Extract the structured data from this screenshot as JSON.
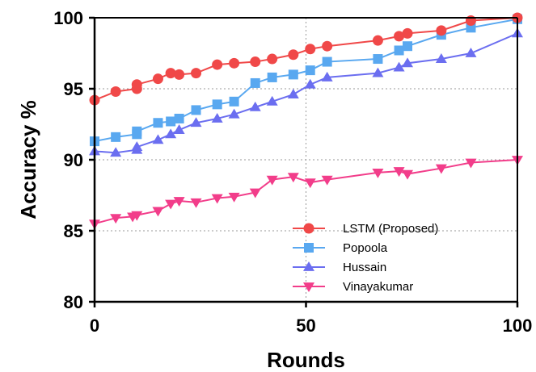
{
  "chart_data": {
    "type": "line",
    "xlabel": "Rounds",
    "ylabel": "Accuracy %",
    "xlim": [
      0,
      100
    ],
    "ylim": [
      80,
      100
    ],
    "xticks": [
      0,
      50,
      100
    ],
    "yticks": [
      80,
      85,
      90,
      95,
      100
    ],
    "grid": "dotted gridlines at x=50 and y=85, 90, 95",
    "legend_position": "bottom-right",
    "series": [
      {
        "name": "LSTM (Proposed)",
        "color": "#f04848",
        "marker": "circle",
        "x": [
          0,
          5,
          10,
          10,
          15,
          18,
          20,
          24,
          29,
          33,
          38,
          42,
          47,
          51,
          55,
          67,
          72,
          74,
          82,
          89,
          100
        ],
        "y": [
          94.2,
          94.8,
          95.0,
          95.3,
          95.7,
          96.1,
          96.0,
          96.1,
          96.7,
          96.8,
          96.9,
          97.1,
          97.4,
          97.8,
          98.0,
          98.4,
          98.7,
          98.9,
          99.1,
          99.8,
          100.0
        ]
      },
      {
        "name": "Popoola",
        "color": "#59a8f0",
        "marker": "square",
        "x": [
          0,
          5,
          10,
          10,
          15,
          18,
          20,
          24,
          29,
          33,
          38,
          42,
          47,
          51,
          55,
          67,
          72,
          74,
          82,
          89,
          100
        ],
        "y": [
          91.3,
          91.6,
          91.8,
          92.0,
          92.6,
          92.7,
          92.9,
          93.5,
          93.9,
          94.1,
          95.4,
          95.8,
          96.0,
          96.3,
          96.9,
          97.1,
          97.7,
          98.0,
          98.8,
          99.3,
          99.9
        ]
      },
      {
        "name": "Hussain",
        "color": "#6b6ef0",
        "marker": "triangle-up",
        "x": [
          0,
          5,
          10,
          10,
          15,
          18,
          20,
          24,
          29,
          33,
          38,
          42,
          47,
          51,
          55,
          67,
          72,
          74,
          82,
          89,
          100
        ],
        "y": [
          90.6,
          90.5,
          90.7,
          90.9,
          91.4,
          91.8,
          92.1,
          92.6,
          92.9,
          93.2,
          93.7,
          94.1,
          94.6,
          95.3,
          95.8,
          96.1,
          96.5,
          96.8,
          97.1,
          97.5,
          98.9
        ]
      },
      {
        "name": "Vinayakumar",
        "color": "#f23d8a",
        "marker": "triangle-down",
        "x": [
          0,
          5,
          9,
          10,
          15,
          18,
          20,
          24,
          29,
          33,
          38,
          42,
          47,
          51,
          55,
          67,
          72,
          74,
          82,
          89,
          100
        ],
        "y": [
          85.5,
          85.9,
          86.0,
          86.1,
          86.4,
          86.9,
          87.1,
          87.0,
          87.3,
          87.4,
          87.7,
          88.6,
          88.8,
          88.4,
          88.6,
          89.1,
          89.2,
          89.0,
          89.4,
          89.8,
          90.0
        ]
      }
    ]
  }
}
